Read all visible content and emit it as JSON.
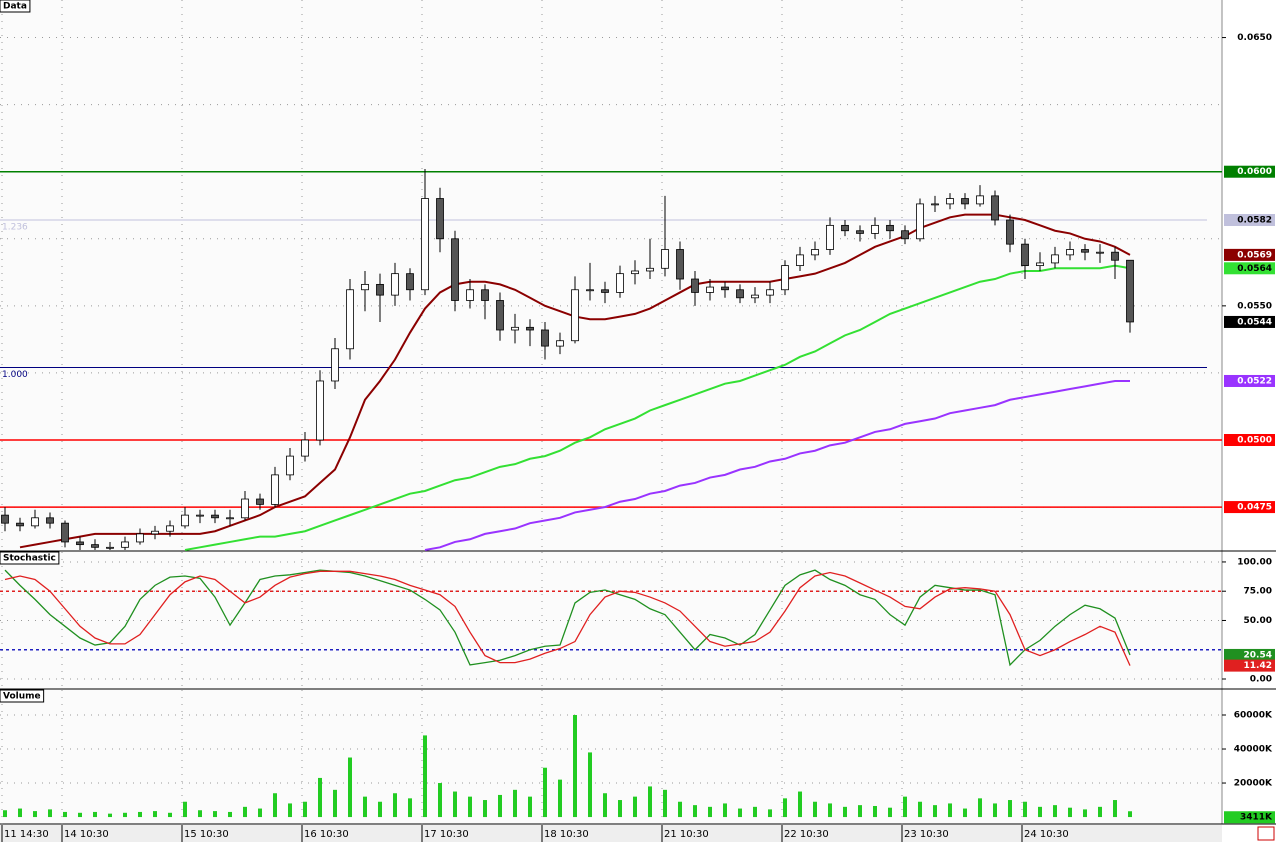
{
  "chart_data": [
    {
      "type": "candlestick",
      "title": "Data",
      "categories": [
        "11 14:30",
        null,
        null,
        null,
        "14 10:30",
        null,
        null,
        null,
        null,
        null,
        null,
        null,
        "15 10:30",
        null,
        null,
        null,
        null,
        null,
        null,
        null,
        "16 10:30",
        null,
        null,
        null,
        null,
        null,
        null,
        null,
        "17 10:30",
        null,
        null,
        null,
        null,
        null,
        null,
        null,
        "18 10:30",
        null,
        null,
        null,
        null,
        null,
        null,
        null,
        "21 10:30",
        null,
        null,
        null,
        null,
        null,
        null,
        null,
        "22 10:30",
        null,
        null,
        null,
        null,
        null,
        null,
        null,
        "23 10:30",
        null,
        null,
        null,
        null,
        null,
        null,
        null,
        "24 10:30",
        null,
        null,
        null,
        null,
        null,
        null,
        null
      ],
      "open": [
        0.0472,
        0.0469,
        0.0468,
        0.0471,
        0.0469,
        0.0462,
        0.0461,
        0.046,
        0.046,
        0.0462,
        0.0465,
        0.0466,
        0.0468,
        0.0472,
        0.0472,
        0.0471,
        0.0471,
        0.0478,
        0.0476,
        0.0487,
        0.0494,
        0.05,
        0.0522,
        0.0534,
        0.0556,
        0.0558,
        0.0554,
        0.0562,
        0.0556,
        0.059,
        0.0575,
        0.0552,
        0.0556,
        0.0552,
        0.0541,
        0.0542,
        0.0541,
        0.0535,
        0.0537,
        0.0556,
        0.0556,
        0.0555,
        0.0562,
        0.0563,
        0.0564,
        0.0571,
        0.056,
        0.0555,
        0.0557,
        0.0556,
        0.0553,
        0.0554,
        0.0556,
        0.0565,
        0.0569,
        0.0571,
        0.058,
        0.0578,
        0.0577,
        0.058,
        0.0578,
        0.0575,
        0.0588,
        0.0588,
        0.059,
        0.0588,
        0.0591,
        0.0582,
        0.0573,
        0.0565,
        0.0566,
        0.0569,
        0.0571,
        0.057,
        0.057,
        0.0567
      ],
      "high": [
        0.0475,
        0.0471,
        0.0474,
        0.0473,
        0.047,
        0.0464,
        0.0463,
        0.0462,
        0.0464,
        0.0467,
        0.0468,
        0.047,
        0.0475,
        0.0474,
        0.0474,
        0.0474,
        0.0481,
        0.048,
        0.049,
        0.0497,
        0.0503,
        0.0526,
        0.0538,
        0.056,
        0.0563,
        0.0562,
        0.0566,
        0.0564,
        0.0601,
        0.0594,
        0.0578,
        0.056,
        0.0558,
        0.0555,
        0.0547,
        0.0545,
        0.0544,
        0.054,
        0.0561,
        0.0566,
        0.0559,
        0.0565,
        0.0567,
        0.0575,
        0.0591,
        0.0574,
        0.0563,
        0.056,
        0.0559,
        0.0558,
        0.0557,
        0.0559,
        0.0567,
        0.0572,
        0.0574,
        0.0583,
        0.0582,
        0.058,
        0.0583,
        0.0582,
        0.058,
        0.059,
        0.0591,
        0.0592,
        0.0592,
        0.0595,
        0.0593,
        0.0584,
        0.0575,
        0.057,
        0.0572,
        0.0574,
        0.0573,
        0.0573,
        0.0572,
        0.0567
      ],
      "low": [
        0.0466,
        0.0466,
        0.0467,
        0.0467,
        0.046,
        0.0459,
        0.0459,
        0.0459,
        0.0459,
        0.0461,
        0.0463,
        0.0464,
        0.0467,
        0.0469,
        0.0469,
        0.0468,
        0.047,
        0.0474,
        0.0475,
        0.0485,
        0.0492,
        0.0498,
        0.0519,
        0.053,
        0.0548,
        0.0544,
        0.055,
        0.0552,
        0.0554,
        0.057,
        0.0548,
        0.0549,
        0.0545,
        0.0537,
        0.0536,
        0.0535,
        0.053,
        0.0532,
        0.0536,
        0.0552,
        0.0551,
        0.0553,
        0.0558,
        0.056,
        0.0561,
        0.0556,
        0.055,
        0.0552,
        0.0553,
        0.0551,
        0.0551,
        0.0551,
        0.0554,
        0.0563,
        0.0567,
        0.0569,
        0.0576,
        0.0574,
        0.0575,
        0.0575,
        0.0573,
        0.0574,
        0.0585,
        0.0586,
        0.0586,
        0.0587,
        0.058,
        0.057,
        0.056,
        0.0563,
        0.0564,
        0.0567,
        0.0567,
        0.0566,
        0.056,
        0.054
      ],
      "close": [
        0.0469,
        0.0468,
        0.0471,
        0.0469,
        0.0462,
        0.0461,
        0.046,
        0.046,
        0.0462,
        0.0465,
        0.0466,
        0.0468,
        0.0472,
        0.0472,
        0.0471,
        0.0471,
        0.0478,
        0.0476,
        0.0487,
        0.0494,
        0.05,
        0.0522,
        0.0534,
        0.0556,
        0.0558,
        0.0554,
        0.0562,
        0.0556,
        0.059,
        0.0575,
        0.0552,
        0.0556,
        0.0552,
        0.0541,
        0.0542,
        0.0541,
        0.0535,
        0.0537,
        0.0556,
        0.0556,
        0.0555,
        0.0562,
        0.0563,
        0.0564,
        0.0571,
        0.056,
        0.0555,
        0.0557,
        0.0556,
        0.0553,
        0.0554,
        0.0556,
        0.0565,
        0.0569,
        0.0571,
        0.058,
        0.0578,
        0.0577,
        0.058,
        0.0578,
        0.0575,
        0.0588,
        0.0588,
        0.059,
        0.0588,
        0.0591,
        0.0582,
        0.0573,
        0.0565,
        0.0566,
        0.0569,
        0.0571,
        0.057,
        0.057,
        0.0567,
        0.0544
      ],
      "moving_averages": [
        {
          "color": "#8b0000",
          "values": [
            null,
            0.046,
            0.0461,
            0.0462,
            0.0463,
            0.0464,
            0.0465,
            0.0465,
            0.0465,
            0.0465,
            0.0465,
            0.0465,
            0.0465,
            0.0465,
            0.0466,
            0.0468,
            0.047,
            0.0472,
            0.0475,
            0.0477,
            0.0479,
            0.0484,
            0.0489,
            0.0501,
            0.0515,
            0.0522,
            0.053,
            0.054,
            0.0549,
            0.0555,
            0.0558,
            0.0559,
            0.0559,
            0.0558,
            0.0556,
            0.0553,
            0.055,
            0.0548,
            0.0546,
            0.0545,
            0.0545,
            0.0546,
            0.0547,
            0.0549,
            0.0552,
            0.0555,
            0.0558,
            0.0559,
            0.0559,
            0.0559,
            0.0559,
            0.0559,
            0.056,
            0.0561,
            0.0562,
            0.0564,
            0.0566,
            0.0569,
            0.0572,
            0.0574,
            0.0576,
            0.0579,
            0.0581,
            0.0583,
            0.0584,
            0.0584,
            0.0584,
            0.0583,
            0.0582,
            0.058,
            0.0578,
            0.0577,
            0.0575,
            0.0574,
            0.0572,
            0.0569
          ]
        },
        {
          "color": "#33e033",
          "values": [
            null,
            null,
            null,
            null,
            null,
            null,
            null,
            null,
            null,
            null,
            null,
            null,
            0.0459,
            0.046,
            0.0461,
            0.0462,
            0.0463,
            0.0464,
            0.0464,
            0.0465,
            0.0466,
            0.0468,
            0.047,
            0.0472,
            0.0474,
            0.0476,
            0.0478,
            0.048,
            0.0481,
            0.0483,
            0.0485,
            0.0486,
            0.0488,
            0.049,
            0.0491,
            0.0493,
            0.0494,
            0.0496,
            0.0499,
            0.0501,
            0.0504,
            0.0506,
            0.0508,
            0.0511,
            0.0513,
            0.0515,
            0.0517,
            0.0519,
            0.0521,
            0.0522,
            0.0524,
            0.0526,
            0.0528,
            0.0531,
            0.0533,
            0.0536,
            0.0539,
            0.0541,
            0.0544,
            0.0547,
            0.0549,
            0.0551,
            0.0553,
            0.0555,
            0.0557,
            0.0559,
            0.056,
            0.0562,
            0.0563,
            0.0563,
            0.0564,
            0.0564,
            0.0564,
            0.0564,
            0.0565,
            0.0564
          ]
        },
        {
          "color": "#9933ff",
          "values": [
            null,
            null,
            null,
            null,
            null,
            null,
            null,
            null,
            null,
            null,
            null,
            null,
            null,
            null,
            null,
            null,
            null,
            null,
            null,
            null,
            null,
            null,
            null,
            null,
            null,
            null,
            null,
            null,
            0.0459,
            0.046,
            0.0462,
            0.0463,
            0.0465,
            0.0466,
            0.0467,
            0.0469,
            0.047,
            0.0471,
            0.0473,
            0.0474,
            0.0475,
            0.0477,
            0.0478,
            0.048,
            0.0481,
            0.0483,
            0.0484,
            0.0486,
            0.0487,
            0.0489,
            0.049,
            0.0492,
            0.0493,
            0.0495,
            0.0496,
            0.0498,
            0.0499,
            0.0501,
            0.0503,
            0.0504,
            0.0506,
            0.0507,
            0.0508,
            0.051,
            0.0511,
            0.0512,
            0.0513,
            0.0515,
            0.0516,
            0.0517,
            0.0518,
            0.0519,
            0.052,
            0.0521,
            0.0522,
            0.0522
          ]
        }
      ],
      "ylim": [
        0.0459,
        0.0664
      ],
      "yticks": [
        {
          "value": 0.065,
          "label": "0.0650"
        },
        {
          "value": 0.055,
          "label": "0.0550"
        }
      ],
      "ygrid": [
        0.065,
        0.0625,
        0.06,
        0.0575,
        0.055,
        0.0525,
        0.05,
        0.0475
      ],
      "levels": [
        {
          "value": 0.06,
          "label": "0.0600",
          "color": "#008000"
        },
        {
          "value": 0.0582,
          "color": "#c0c0dc",
          "fib": "1.236"
        },
        {
          "value": 0.0527,
          "color": "#000080",
          "fib": "1.000"
        },
        {
          "value": 0.05,
          "label": "0.0500",
          "color": "#ff0000"
        },
        {
          "value": 0.0475,
          "color": "#ff0000"
        }
      ],
      "grid": true
    },
    {
      "type": "line",
      "title": "Stochastic",
      "series": [
        {
          "color": "#209020",
          "values": [
            93,
            80,
            68,
            55,
            45,
            35,
            29,
            31,
            45,
            68,
            80,
            87,
            88,
            86,
            70,
            46,
            65,
            85,
            88,
            89,
            91,
            93,
            92,
            91,
            88,
            84,
            80,
            76,
            68,
            59,
            40,
            12,
            14,
            16,
            20,
            25,
            28,
            29,
            65,
            74,
            76,
            72,
            68,
            60,
            55,
            40,
            25,
            38,
            35,
            29,
            38,
            59,
            80,
            89,
            93,
            85,
            80,
            72,
            68,
            55,
            46,
            70,
            80,
            78,
            76,
            76,
            72,
            12,
            25,
            33,
            45,
            55,
            63,
            60,
            52,
            20.54
          ]
        },
        {
          "color": "#e02020",
          "values": [
            85,
            88,
            85,
            75,
            60,
            45,
            35,
            30,
            30,
            38,
            55,
            72,
            83,
            88,
            85,
            75,
            65,
            70,
            80,
            87,
            90,
            92,
            92,
            92,
            90,
            88,
            85,
            80,
            76,
            72,
            62,
            40,
            20,
            14,
            14,
            17,
            22,
            26,
            32,
            55,
            70,
            75,
            74,
            70,
            65,
            58,
            45,
            32,
            28,
            30,
            32,
            40,
            58,
            78,
            88,
            91,
            88,
            82,
            76,
            70,
            62,
            60,
            70,
            77,
            78,
            77,
            75,
            55,
            25,
            20,
            25,
            32,
            38,
            45,
            40,
            11.42
          ]
        }
      ],
      "ylim": [
        -7.7,
        108.5
      ],
      "yticks": [
        {
          "value": 100,
          "label": "100.00"
        },
        {
          "value": 75,
          "label": "75.00"
        },
        {
          "value": 50,
          "label": "50.00"
        },
        {
          "value": 0,
          "label": "0.00"
        }
      ],
      "levels": [
        {
          "value": 75,
          "color": "#e02020"
        },
        {
          "value": 25,
          "color": "#2020c0"
        }
      ],
      "grid": true
    },
    {
      "type": "bar",
      "title": "Volume",
      "values": [
        4000,
        5000,
        3500,
        4500,
        3000,
        2500,
        3000,
        2000,
        2500,
        3000,
        3500,
        2500,
        9000,
        4000,
        3500,
        3000,
        6000,
        5000,
        14000,
        8000,
        9000,
        23000,
        16000,
        35000,
        12000,
        9000,
        14000,
        11000,
        48000,
        20000,
        15000,
        12000,
        10000,
        13000,
        16000,
        12000,
        29000,
        22000,
        60000,
        38000,
        14000,
        10000,
        12000,
        18000,
        16000,
        9000,
        7000,
        6000,
        8000,
        5000,
        6000,
        4500,
        11000,
        15000,
        9000,
        8000,
        6000,
        7000,
        6500,
        5500,
        12000,
        9000,
        7000,
        8000,
        5000,
        11000,
        8000,
        10000,
        9000,
        6000,
        7000,
        5500,
        4500,
        6000,
        10000,
        3411
      ],
      "value_labels": [
        null,
        null,
        null,
        null,
        null,
        null,
        null,
        null,
        null,
        null,
        null,
        null,
        null,
        null,
        null,
        null,
        null,
        null,
        null,
        null,
        null,
        null,
        null,
        null,
        null,
        null,
        null,
        null,
        null,
        null,
        null,
        null,
        null,
        null,
        null,
        null,
        null,
        null,
        null,
        null,
        null,
        null,
        null,
        null,
        null,
        null,
        null,
        null,
        null,
        null,
        null,
        null,
        null,
        null,
        null,
        null,
        null,
        null,
        null,
        null,
        null,
        null,
        null,
        null,
        null,
        null,
        null,
        null,
        null,
        null,
        null,
        null,
        null,
        null,
        null,
        "3411K"
      ],
      "color": "#22cc22",
      "ylim": [
        -3500,
        74700
      ],
      "yticks": [
        {
          "value": 60000,
          "label": "60000K"
        },
        {
          "value": 40000,
          "label": "40000K"
        },
        {
          "value": 20000,
          "label": "20000K"
        }
      ],
      "grid": true
    }
  ]
}
